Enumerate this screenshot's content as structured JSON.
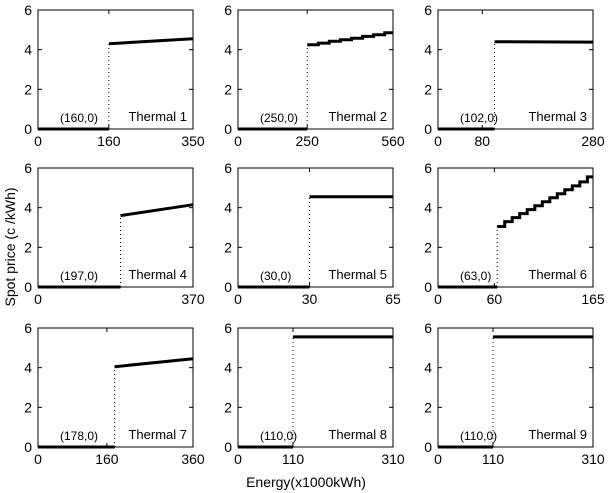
{
  "figure": {
    "ylabel": "Spot price (c /kWh)",
    "xlabel": "Energy(x1000kWh)"
  },
  "chart_data": [
    {
      "type": "line",
      "title": "Thermal 1",
      "cusp_label": "(160,0)",
      "xlim": [
        0,
        350
      ],
      "ylim": [
        0,
        6
      ],
      "xticks": [
        "0",
        "160",
        "350"
      ],
      "yticks": [
        "0",
        "2",
        "4",
        "6"
      ],
      "grid": false,
      "series": [
        {
          "x": [
            0,
            160
          ],
          "y": [
            0,
            0
          ]
        },
        {
          "x": [
            160,
            350
          ],
          "y": [
            4.3,
            4.55
          ]
        }
      ]
    },
    {
      "type": "line",
      "title": "Thermal 2",
      "cusp_label": "(250,0)",
      "xlim": [
        0,
        560
      ],
      "ylim": [
        0,
        6
      ],
      "xticks": [
        "0",
        "250",
        "560"
      ],
      "yticks": [
        "0",
        "2",
        "4",
        "6"
      ],
      "grid": false,
      "series": [
        {
          "x": [
            0,
            250
          ],
          "y": [
            0,
            0
          ]
        },
        {
          "x": [
            250,
            290,
            290,
            330,
            330,
            370,
            370,
            410,
            410,
            450,
            450,
            490,
            490,
            530,
            530,
            560
          ],
          "y": [
            4.25,
            4.25,
            4.33,
            4.33,
            4.42,
            4.42,
            4.5,
            4.5,
            4.58,
            4.58,
            4.67,
            4.67,
            4.75,
            4.75,
            4.85,
            4.85
          ]
        }
      ]
    },
    {
      "type": "line",
      "title": "Thermal 3",
      "cusp_label": "(102,0)",
      "xlim": [
        0,
        280
      ],
      "ylim": [
        0,
        6
      ],
      "xticks": [
        "0",
        "80",
        "280"
      ],
      "yticks": [
        "0",
        "2",
        "4",
        "6"
      ],
      "grid": false,
      "series": [
        {
          "x": [
            0,
            102
          ],
          "y": [
            0,
            0
          ]
        },
        {
          "x": [
            102,
            280
          ],
          "y": [
            4.4,
            4.38
          ]
        }
      ]
    },
    {
      "type": "line",
      "title": "Thermal 4",
      "cusp_label": "(197,0)",
      "xlim": [
        0,
        370
      ],
      "ylim": [
        0,
        6
      ],
      "xticks": [
        "0",
        "370"
      ],
      "yticks": [
        "0",
        "2",
        "4",
        "6"
      ],
      "grid": false,
      "series": [
        {
          "x": [
            0,
            197
          ],
          "y": [
            0,
            0
          ]
        },
        {
          "x": [
            197,
            370
          ],
          "y": [
            3.6,
            4.15
          ]
        }
      ]
    },
    {
      "type": "line",
      "title": "Thermal 5",
      "cusp_label": "(30,0)",
      "xlim": [
        0,
        65
      ],
      "ylim": [
        0,
        6
      ],
      "xticks": [
        "0",
        "30",
        "65"
      ],
      "yticks": [
        "0",
        "2",
        "4",
        "6"
      ],
      "grid": false,
      "series": [
        {
          "x": [
            0,
            30
          ],
          "y": [
            0,
            0
          ]
        },
        {
          "x": [
            30,
            65
          ],
          "y": [
            4.55,
            4.55
          ]
        }
      ]
    },
    {
      "type": "line",
      "title": "Thermal 6",
      "cusp_label": "(63,0)",
      "xlim": [
        0,
        165
      ],
      "ylim": [
        0,
        6
      ],
      "xticks": [
        "0",
        "60",
        "165"
      ],
      "yticks": [
        "0",
        "2",
        "4",
        "6"
      ],
      "grid": false,
      "series": [
        {
          "x": [
            0,
            63
          ],
          "y": [
            0,
            0
          ]
        },
        {
          "x": [
            63,
            71,
            71,
            79,
            79,
            87,
            87,
            95,
            95,
            103,
            103,
            111,
            111,
            119,
            119,
            127,
            127,
            135,
            135,
            143,
            143,
            151,
            151,
            159,
            159,
            165
          ],
          "y": [
            3.05,
            3.05,
            3.3,
            3.3,
            3.5,
            3.5,
            3.7,
            3.7,
            3.9,
            3.9,
            4.1,
            4.1,
            4.3,
            4.3,
            4.5,
            4.5,
            4.7,
            4.7,
            4.9,
            4.9,
            5.1,
            5.1,
            5.3,
            5.3,
            5.55,
            5.55
          ]
        }
      ]
    },
    {
      "type": "line",
      "title": "Thermal 7",
      "cusp_label": "(178,0)",
      "xlim": [
        0,
        360
      ],
      "ylim": [
        0,
        6
      ],
      "xticks": [
        "0",
        "160",
        "360"
      ],
      "yticks": [
        "0",
        "2",
        "4",
        "6"
      ],
      "grid": false,
      "series": [
        {
          "x": [
            0,
            178
          ],
          "y": [
            0,
            0
          ]
        },
        {
          "x": [
            178,
            360
          ],
          "y": [
            4.05,
            4.45
          ]
        }
      ]
    },
    {
      "type": "line",
      "title": "Thermal 8",
      "cusp_label": "(110,0)",
      "xlim": [
        0,
        310
      ],
      "ylim": [
        0,
        6
      ],
      "xticks": [
        "0",
        "110",
        "310"
      ],
      "yticks": [
        "0",
        "2",
        "4",
        "6"
      ],
      "grid": false,
      "series": [
        {
          "x": [
            0,
            110
          ],
          "y": [
            0,
            0
          ]
        },
        {
          "x": [
            110,
            310
          ],
          "y": [
            5.55,
            5.55
          ]
        }
      ]
    },
    {
      "type": "line",
      "title": "Thermal 9",
      "cusp_label": "(110,0)",
      "xlim": [
        0,
        310
      ],
      "ylim": [
        0,
        6
      ],
      "xticks": [
        "0",
        "110",
        "310"
      ],
      "yticks": [
        "0",
        "2",
        "4",
        "6"
      ],
      "grid": false,
      "series": [
        {
          "x": [
            0,
            110
          ],
          "y": [
            0,
            0
          ]
        },
        {
          "x": [
            110,
            310
          ],
          "y": [
            5.55,
            5.55
          ]
        }
      ]
    }
  ]
}
